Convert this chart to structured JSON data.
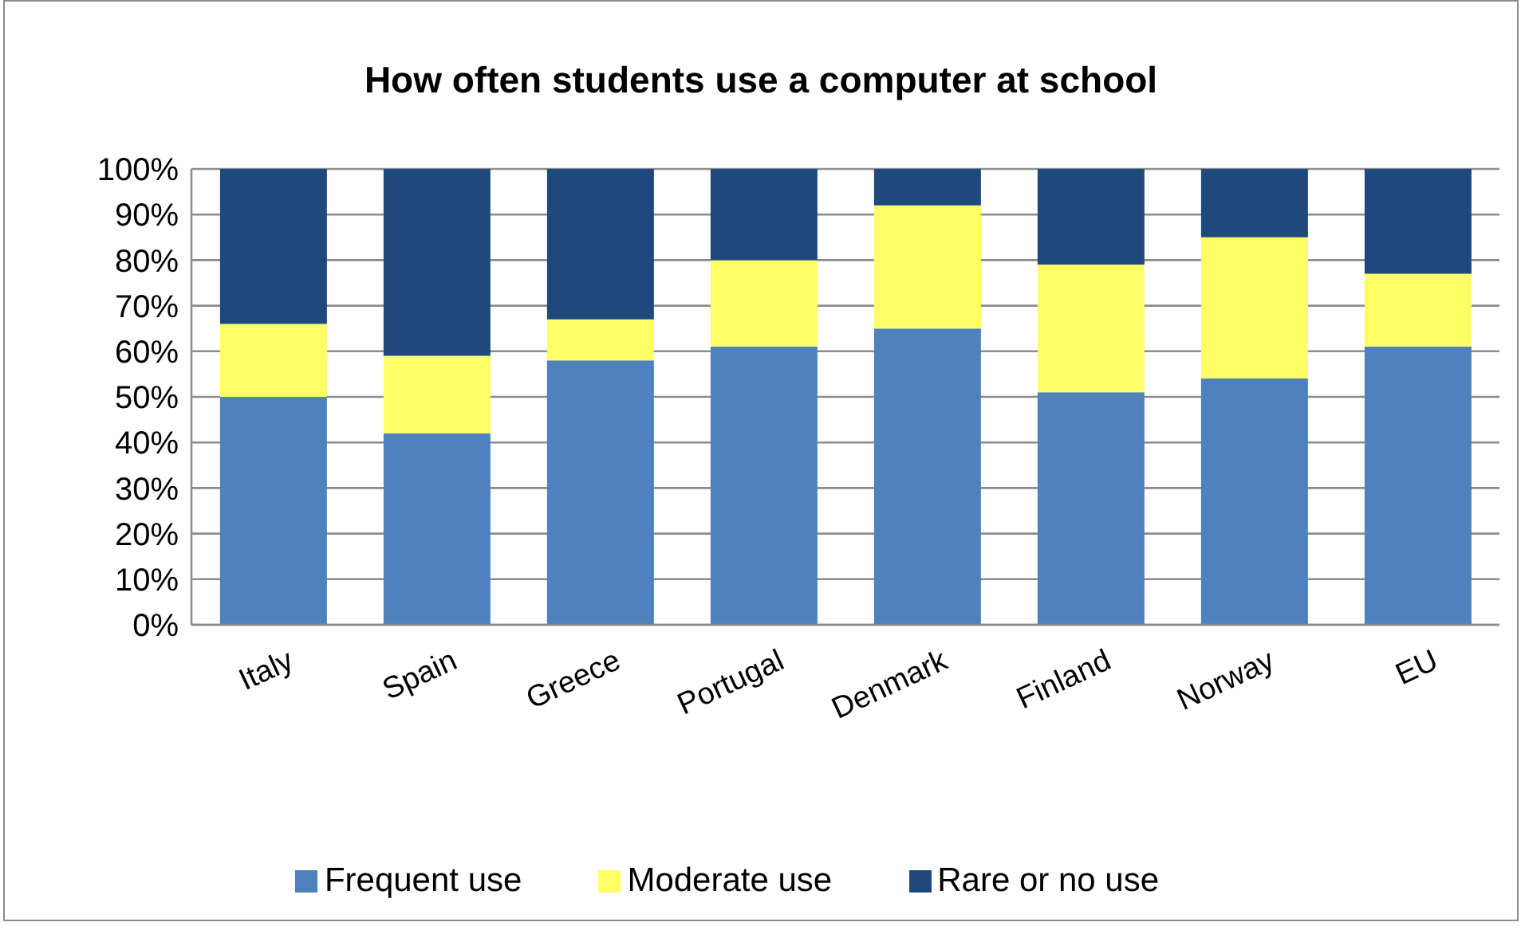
{
  "chart_data": {
    "type": "bar",
    "title": "How often students use a computer at school",
    "categories": [
      "Italy",
      "Spain",
      "Greece",
      "Portugal",
      "Denmark",
      "Finland",
      "Norway",
      "EU"
    ],
    "stacked": true,
    "series": [
      {
        "name": "Frequent use",
        "color": "#4f81bd",
        "values": [
          50,
          42,
          58,
          61,
          65,
          51,
          54,
          61
        ]
      },
      {
        "name": "Moderate use",
        "color": "#ffff66",
        "values": [
          16,
          17,
          9,
          19,
          27,
          28,
          31,
          16
        ]
      },
      {
        "name": "Rare or no use",
        "color": "#1f497d",
        "values": [
          34,
          41,
          33,
          20,
          8,
          21,
          15,
          23
        ]
      }
    ],
    "ylim": [
      0,
      100
    ],
    "yticks": [
      {
        "value": 0,
        "label": "0%"
      },
      {
        "value": 10,
        "label": "10%"
      },
      {
        "value": 20,
        "label": "20%"
      },
      {
        "value": 30,
        "label": "30%"
      },
      {
        "value": 40,
        "label": "40%"
      },
      {
        "value": 50,
        "label": "50%"
      },
      {
        "value": 60,
        "label": "60%"
      },
      {
        "value": 70,
        "label": "70%"
      },
      {
        "value": 80,
        "label": "80%"
      },
      {
        "value": 90,
        "label": "90%"
      },
      {
        "value": 100,
        "label": "100%"
      }
    ],
    "grid": "y",
    "legend": "bottom"
  }
}
